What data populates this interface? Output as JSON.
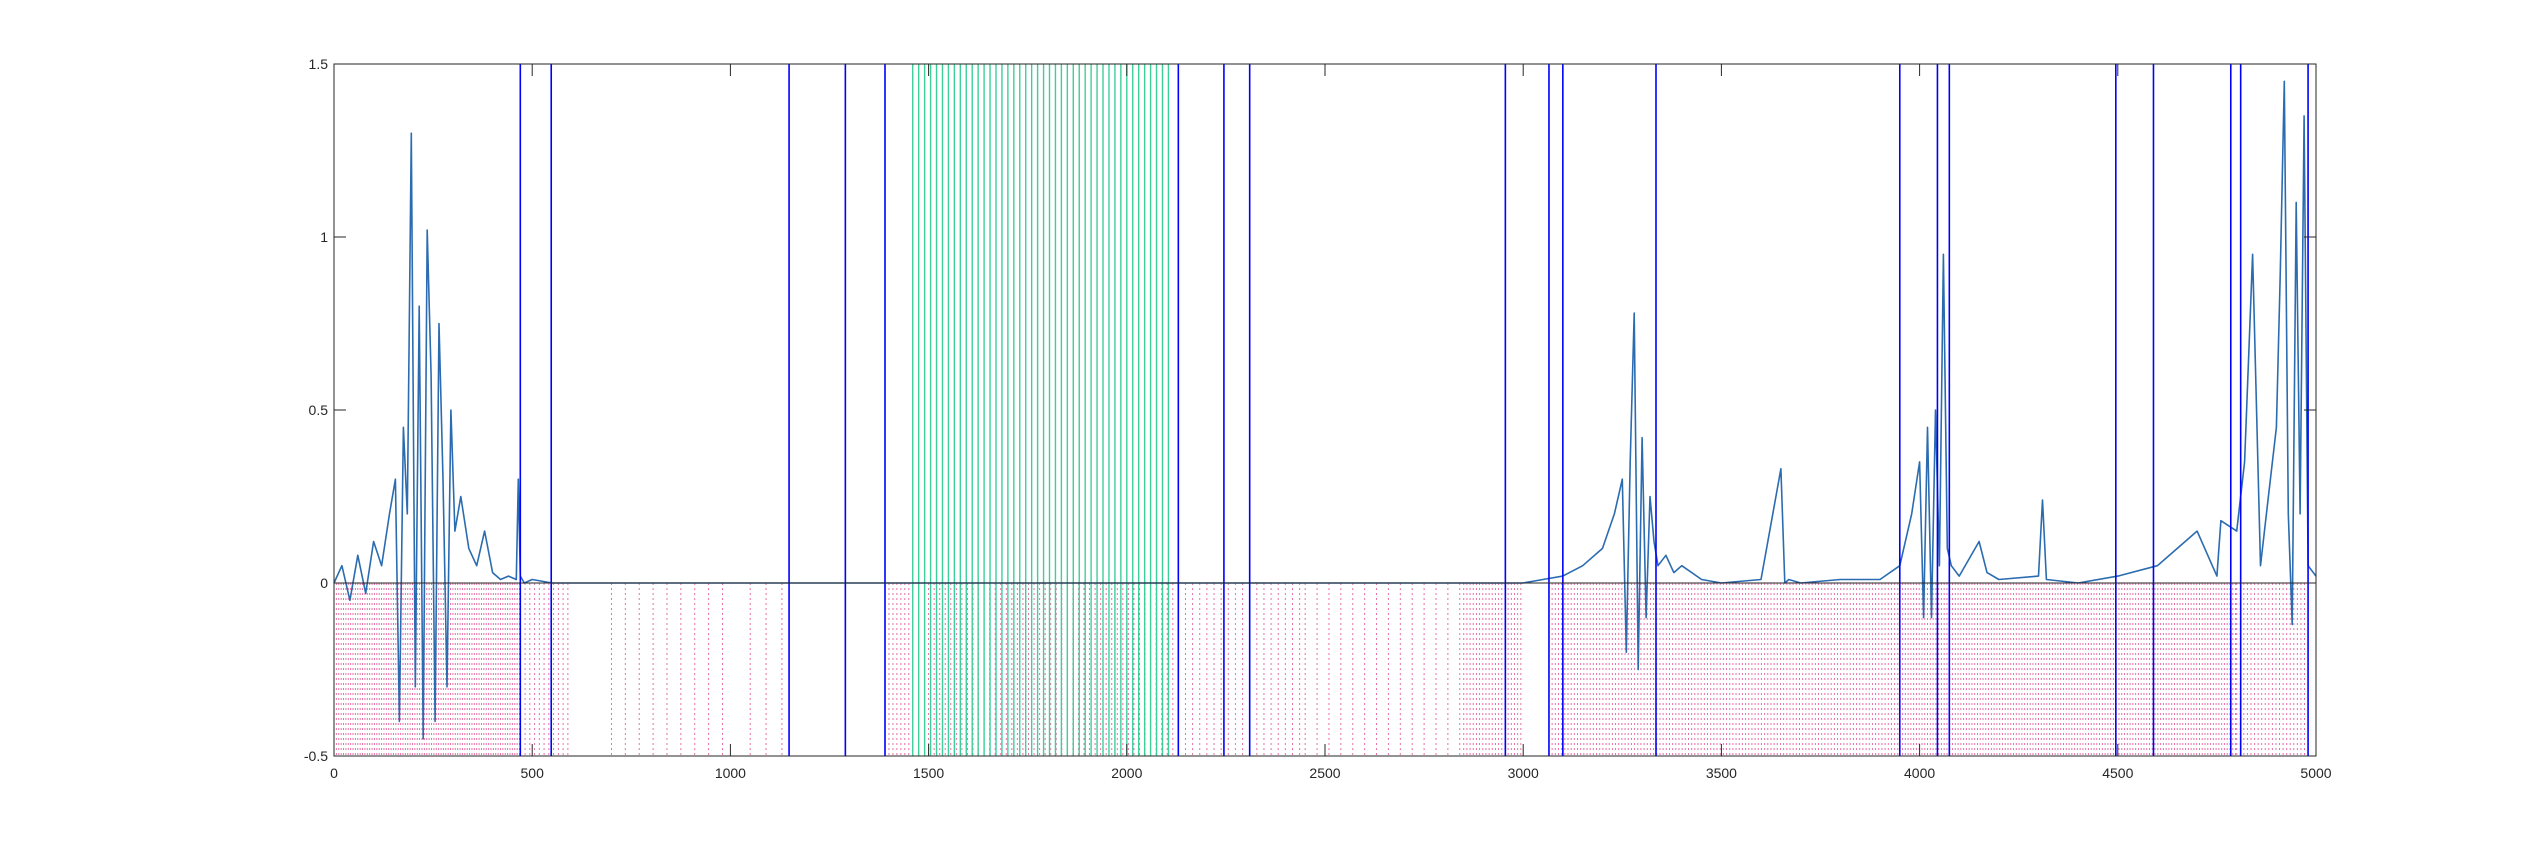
{
  "chart_data": {
    "type": "line",
    "title": "",
    "xlabel": "",
    "ylabel": "",
    "xlim": [
      0,
      5000
    ],
    "ylim": [
      -0.5,
      1.5
    ],
    "grid": false,
    "legend": "none",
    "x_ticks": [
      0,
      500,
      1000,
      1500,
      2000,
      2500,
      3000,
      3500,
      4000,
      4500,
      5000
    ],
    "x_tick_labels": [
      "0",
      "500",
      "1000",
      "1500",
      "2000",
      "2500",
      "3000",
      "3500",
      "4000",
      "4500",
      "5000"
    ],
    "y_ticks": [
      -0.5,
      0,
      0.5,
      1,
      1.5
    ],
    "y_tick_labels": [
      "-0.5",
      "0",
      "0.5",
      "1",
      "1.5"
    ],
    "series": [
      {
        "role": "signal",
        "color": "#2b6cb0",
        "x": [
          0,
          20,
          40,
          60,
          80,
          100,
          120,
          140,
          155,
          165,
          175,
          185,
          195,
          205,
          215,
          225,
          235,
          245,
          255,
          265,
          275,
          285,
          295,
          305,
          320,
          340,
          360,
          380,
          400,
          420,
          440,
          460,
          465,
          470,
          480,
          500,
          550,
          600,
          3000,
          3050,
          3100,
          3150,
          3200,
          3230,
          3250,
          3260,
          3270,
          3280,
          3290,
          3300,
          3310,
          3320,
          3330,
          3340,
          3360,
          3380,
          3400,
          3450,
          3500,
          3600,
          3650,
          3660,
          3670,
          3700,
          3800,
          3900,
          3950,
          3980,
          4000,
          4010,
          4020,
          4030,
          4040,
          4050,
          4060,
          4070,
          4080,
          4100,
          4150,
          4170,
          4200,
          4300,
          4310,
          4320,
          4400,
          4500,
          4600,
          4650,
          4700,
          4750,
          4760,
          4800,
          4820,
          4840,
          4860,
          4880,
          4900,
          4910,
          4920,
          4930,
          4940,
          4950,
          4960,
          4970,
          4980,
          5000
        ],
        "y": [
          0,
          0.05,
          -0.05,
          0.08,
          -0.03,
          0.12,
          0.05,
          0.2,
          0.3,
          -0.4,
          0.45,
          0.2,
          1.3,
          -0.3,
          0.8,
          -0.45,
          1.02,
          0.6,
          -0.4,
          0.75,
          0.3,
          -0.3,
          0.5,
          0.15,
          0.25,
          0.1,
          0.05,
          0.15,
          0.03,
          0.01,
          0.02,
          0.01,
          0.3,
          0.02,
          0.0,
          0.01,
          0.0,
          0.0,
          0.0,
          0.01,
          0.02,
          0.05,
          0.1,
          0.2,
          0.3,
          -0.2,
          0.35,
          0.78,
          -0.25,
          0.42,
          -0.1,
          0.25,
          0.12,
          0.05,
          0.08,
          0.03,
          0.05,
          0.01,
          0.0,
          0.01,
          0.33,
          0.0,
          0.01,
          0.0,
          0.01,
          0.01,
          0.05,
          0.2,
          0.35,
          -0.1,
          0.45,
          -0.1,
          0.5,
          0.05,
          0.95,
          0.1,
          0.05,
          0.02,
          0.12,
          0.03,
          0.01,
          0.02,
          0.24,
          0.01,
          0.0,
          0.02,
          0.05,
          0.1,
          0.15,
          0.02,
          0.18,
          0.15,
          0.35,
          0.95,
          0.05,
          0.25,
          0.45,
          0.9,
          1.45,
          0.2,
          -0.12,
          1.1,
          0.2,
          1.35,
          0.05,
          0.02
        ]
      }
    ],
    "event_lines": {
      "blue_x": [
        470,
        548,
        1148,
        1290,
        1390,
        2130,
        2245,
        2310,
        2955,
        3065,
        3100,
        3335,
        3950,
        4045,
        4075,
        4495,
        4590,
        4785,
        4810,
        4980
      ],
      "green_x": [
        1460,
        1475,
        1490,
        1505,
        1520,
        1535,
        1550,
        1565,
        1580,
        1595,
        1610,
        1625,
        1640,
        1655,
        1670,
        1685,
        1700,
        1715,
        1730,
        1745,
        1760,
        1775,
        1790,
        1805,
        1820,
        1835,
        1850,
        1865,
        1880,
        1895,
        1910,
        1925,
        1940,
        1955,
        1970,
        1985,
        2000,
        2015,
        2030,
        2045,
        2060,
        2075,
        2090,
        2105
      ],
      "blue_color": "#0000ff",
      "green_color": "#3ccf9a",
      "magenta_color": "#e0408a"
    }
  }
}
